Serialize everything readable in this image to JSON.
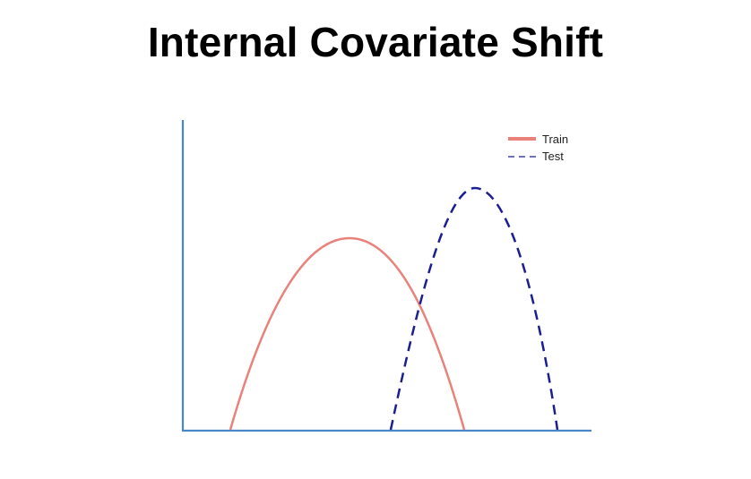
{
  "title": "Internal Covariate Shift",
  "legend": [
    {
      "label": "Train",
      "color": "#e9827b",
      "style": "solid"
    },
    {
      "label": "Test",
      "color": "#1b1f8f",
      "style": "dashed"
    }
  ],
  "axis_color": "#4a86c8"
}
